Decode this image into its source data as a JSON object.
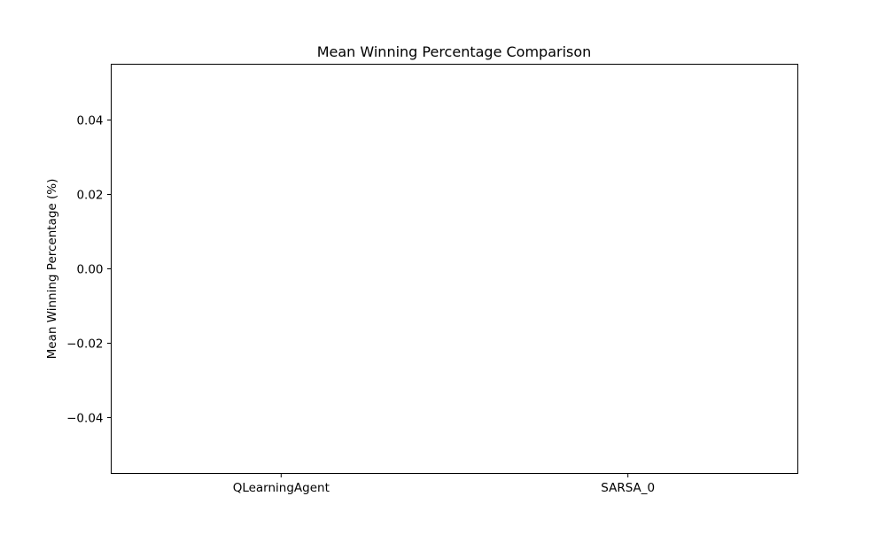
{
  "chart_data": {
    "type": "bar",
    "title": "Mean Winning Percentage Comparison",
    "xlabel": "",
    "ylabel": "Mean Winning Percentage (%)",
    "categories": [
      "QLearningAgent",
      "SARSA_0"
    ],
    "values": [
      0,
      0
    ],
    "ylim": [
      -0.055,
      0.055
    ],
    "yticks": [
      -0.04,
      -0.02,
      0.0,
      0.02,
      0.04
    ],
    "ytick_labels": [
      "−0.04",
      "−0.02",
      "0.00",
      "0.02",
      "0.04"
    ],
    "grid": false,
    "legend": null
  }
}
